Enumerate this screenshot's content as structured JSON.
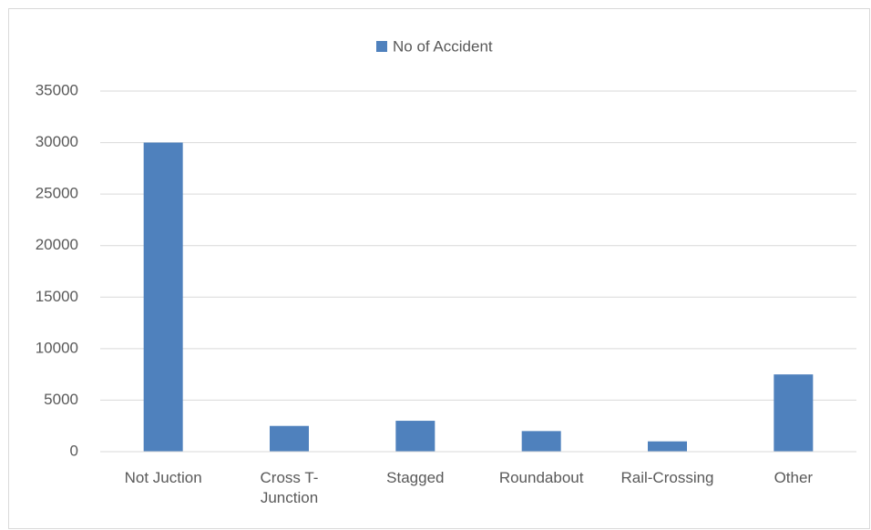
{
  "chart_data": {
    "type": "bar",
    "categories": [
      "Not Juction",
      "Cross T-Junction",
      "Stagged",
      "Roundabout",
      "Rail-Crossing",
      "Other"
    ],
    "series": [
      {
        "name": "No of Accident",
        "color": "#4f81bd",
        "values": [
          30000,
          2500,
          3000,
          2000,
          1000,
          7500
        ]
      }
    ],
    "ylim": [
      0,
      35000
    ],
    "yticks": [
      0,
      5000,
      10000,
      15000,
      20000,
      25000,
      30000,
      35000
    ],
    "grid": true,
    "legend": "top"
  }
}
